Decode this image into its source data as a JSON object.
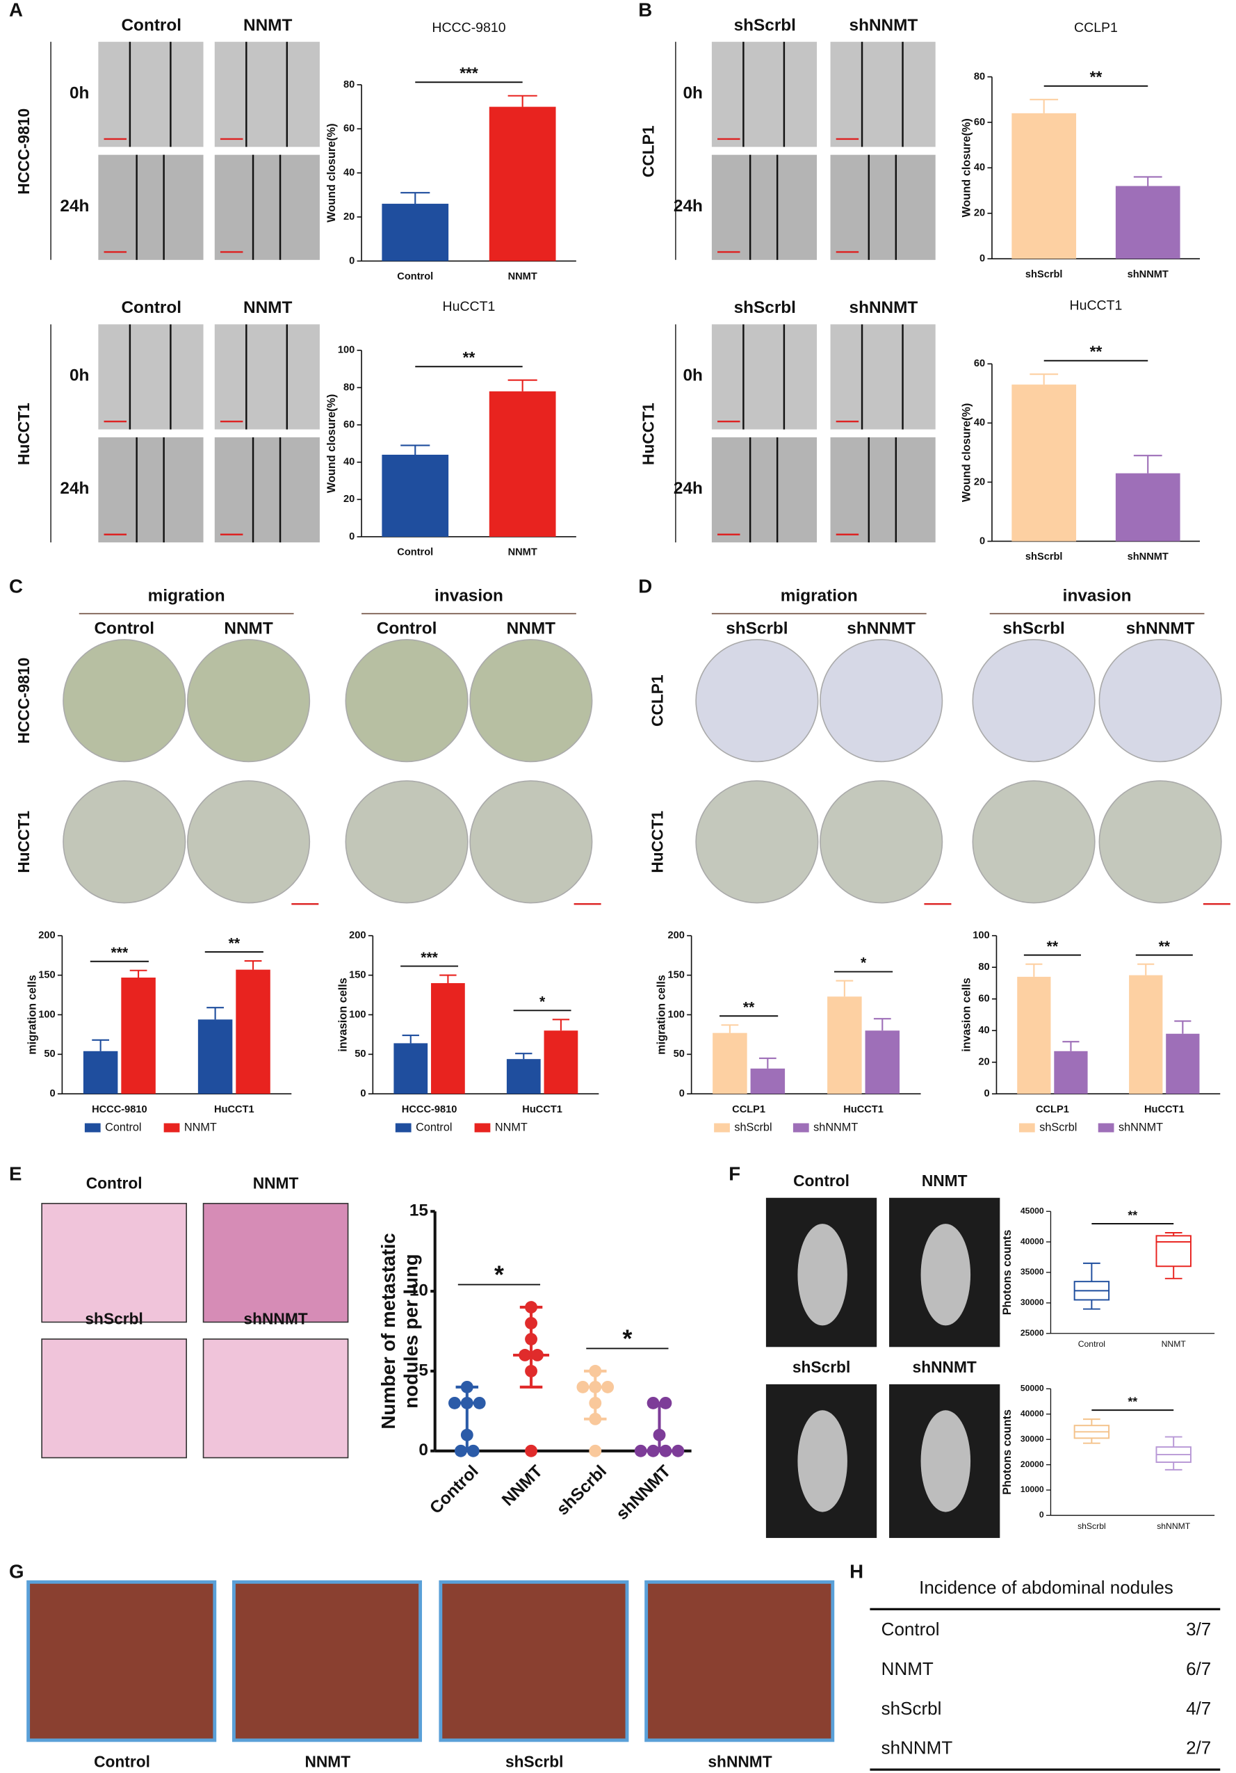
{
  "panels": [
    "A",
    "B",
    "C",
    "D",
    "E",
    "F",
    "G",
    "H"
  ],
  "panel_a": {
    "blocks": [
      {
        "cell": "HCCC-9810",
        "columns": [
          "Control",
          "NNMT"
        ],
        "rows": [
          "0h",
          "24h"
        ]
      },
      {
        "cell": "HuCCT1",
        "columns": [
          "Control",
          "NNMT"
        ],
        "rows": [
          "0h",
          "24h"
        ]
      }
    ]
  },
  "panel_b": {
    "blocks": [
      {
        "cell": "CCLP1",
        "columns": [
          "shScrbl",
          "shNNMT"
        ],
        "rows": [
          "0h",
          "24h"
        ]
      },
      {
        "cell": "HuCCT1",
        "columns": [
          "shScrbl",
          "shNNMT"
        ],
        "rows": [
          "0h",
          "24h"
        ]
      }
    ]
  },
  "panel_c": {
    "groups": [
      {
        "title": "migration",
        "columns": [
          "Control",
          "NNMT"
        ]
      },
      {
        "title": "invasion",
        "columns": [
          "Control",
          "NNMT"
        ]
      }
    ],
    "rows": [
      "HCCC-9810",
      "HuCCT1"
    ]
  },
  "panel_d": {
    "groups": [
      {
        "title": "migration",
        "columns": [
          "shScrbl",
          "shNNMT"
        ]
      },
      {
        "title": "invasion",
        "columns": [
          "shScrbl",
          "shNNMT"
        ]
      }
    ],
    "rows": [
      "CCLP1",
      "HuCCT1"
    ]
  },
  "panel_e": {
    "images": [
      "Control",
      "NNMT",
      "shScrbl",
      "shNNMT"
    ]
  },
  "panel_f": {
    "images": [
      "Control",
      "NNMT",
      "shScrbl",
      "shNNMT"
    ]
  },
  "panel_g": {
    "images": [
      "Control",
      "NNMT",
      "shScrbl",
      "shNNMT"
    ]
  },
  "panel_h": {
    "title": "Incidence of abdominal nodules",
    "rows": [
      [
        "Control",
        "3/7"
      ],
      [
        "NNMT",
        "6/7"
      ],
      [
        "shScrbl",
        "4/7"
      ],
      [
        "shNNMT",
        "2/7"
      ]
    ]
  },
  "chart_data": [
    {
      "type": "bar",
      "title": "HCCC-9810",
      "ylabel": "Wound closure(%)",
      "categories": [
        "Control",
        "NNMT"
      ],
      "values": [
        26,
        70
      ],
      "errors": [
        5,
        5
      ],
      "colors": [
        "#1f4e9e",
        "#e8231f"
      ],
      "ylim": [
        0,
        80
      ],
      "yticks": [
        0,
        20,
        40,
        60,
        80
      ],
      "significance": "***"
    },
    {
      "type": "bar",
      "title": "HuCCT1",
      "ylabel": "Wound closure(%)",
      "categories": [
        "Control",
        "NNMT"
      ],
      "values": [
        44,
        78
      ],
      "errors": [
        5,
        6
      ],
      "colors": [
        "#1f4e9e",
        "#e8231f"
      ],
      "ylim": [
        0,
        100
      ],
      "yticks": [
        0,
        20,
        40,
        60,
        80,
        100
      ],
      "significance": "**"
    },
    {
      "type": "bar",
      "title": "CCLP1",
      "ylabel": "Wound closure(%)",
      "categories": [
        "shScrbl",
        "shNNMT"
      ],
      "values": [
        64,
        32
      ],
      "errors": [
        6,
        4
      ],
      "colors": [
        "#fdd0a2",
        "#9e6fb8"
      ],
      "ylim": [
        0,
        80
      ],
      "yticks": [
        0,
        20,
        40,
        60,
        80
      ],
      "significance": "**"
    },
    {
      "type": "bar",
      "title": "HuCCT1",
      "ylabel": "Wound closure(%)",
      "categories": [
        "shScrbl",
        "shNNMT"
      ],
      "values": [
        53,
        23
      ],
      "errors": [
        3.5,
        6
      ],
      "colors": [
        "#fdd0a2",
        "#9e6fb8"
      ],
      "ylim": [
        0,
        60
      ],
      "yticks": [
        0,
        20,
        40,
        60
      ],
      "significance": "**"
    },
    {
      "type": "bar",
      "ylabel": "migration cells",
      "categories": [
        "HCCC-9810",
        "HuCCT1"
      ],
      "series": [
        {
          "name": "Control",
          "color": "#1f4e9e",
          "values": [
            54,
            94
          ],
          "errors": [
            14,
            15
          ]
        },
        {
          "name": "NNMT",
          "color": "#e8231f",
          "values": [
            147,
            157
          ],
          "errors": [
            9,
            11
          ]
        }
      ],
      "ylim": [
        0,
        200
      ],
      "yticks": [
        0,
        50,
        100,
        150,
        200
      ],
      "significance": [
        "***",
        "**"
      ]
    },
    {
      "type": "bar",
      "ylabel": "invasion cells",
      "categories": [
        "HCCC-9810",
        "HuCCT1"
      ],
      "series": [
        {
          "name": "Control",
          "color": "#1f4e9e",
          "values": [
            64,
            44
          ],
          "errors": [
            10,
            7
          ]
        },
        {
          "name": "NNMT",
          "color": "#e8231f",
          "values": [
            140,
            80
          ],
          "errors": [
            10,
            14
          ]
        }
      ],
      "ylim": [
        0,
        200
      ],
      "yticks": [
        0,
        50,
        100,
        150,
        200
      ],
      "significance": [
        "***",
        "*"
      ]
    },
    {
      "type": "bar",
      "ylabel": "migration cells",
      "categories": [
        "CCLP1",
        "HuCCT1"
      ],
      "series": [
        {
          "name": "shScrbl",
          "color": "#fdd0a2",
          "values": [
            77,
            123
          ],
          "errors": [
            10,
            20
          ]
        },
        {
          "name": "shNNMT",
          "color": "#9e6fb8",
          "values": [
            32,
            80
          ],
          "errors": [
            13,
            15
          ]
        }
      ],
      "ylim": [
        0,
        200
      ],
      "yticks": [
        0,
        50,
        100,
        150,
        200
      ],
      "significance": [
        "**",
        "*"
      ]
    },
    {
      "type": "bar",
      "ylabel": "invasion cells",
      "categories": [
        "CCLP1",
        "HuCCT1"
      ],
      "series": [
        {
          "name": "shScrbl",
          "color": "#fdd0a2",
          "values": [
            74,
            75
          ],
          "errors": [
            8,
            7
          ]
        },
        {
          "name": "shNNMT",
          "color": "#9e6fb8",
          "values": [
            27,
            38
          ],
          "errors": [
            6,
            8
          ]
        }
      ],
      "ylim": [
        0,
        100
      ],
      "yticks": [
        0,
        20,
        40,
        60,
        80,
        100
      ],
      "significance": [
        "**",
        "**"
      ]
    },
    {
      "type": "dot",
      "ylabel": [
        "Number of metastatic",
        "nodules per lung"
      ],
      "categories": [
        "Control",
        "NNMT",
        "shScrbl",
        "shNNMT"
      ],
      "colors": [
        "#2b5ba8",
        "#e02b2b",
        "#f9c89b",
        "#7d3c98"
      ],
      "points": [
        [
          0,
          0,
          1,
          3,
          3,
          3,
          4
        ],
        [
          0,
          5,
          6,
          6,
          7,
          8,
          9
        ],
        [
          0,
          2,
          3,
          4,
          4,
          4,
          5
        ],
        [
          0,
          0,
          0,
          0,
          1,
          3,
          3
        ]
      ],
      "center": [
        3,
        6,
        4,
        0
      ],
      "lower": [
        0,
        4,
        2,
        0
      ],
      "upper": [
        4,
        9,
        5,
        3
      ],
      "ylim": [
        0,
        15
      ],
      "yticks": [
        0,
        5,
        10,
        15
      ],
      "significance": [
        "*",
        "*"
      ]
    },
    {
      "type": "box",
      "ylabel": "Photons counts",
      "categories": [
        "Control",
        "NNMT"
      ],
      "colors": [
        "#1f4e9e",
        "#e8231f"
      ],
      "min": [
        29000,
        34000
      ],
      "q1": [
        30500,
        36000
      ],
      "median": [
        32000,
        40000
      ],
      "q3": [
        33500,
        41000
      ],
      "max": [
        36500,
        41500
      ],
      "ylim": [
        25000,
        45000
      ],
      "yticks": [
        25000,
        30000,
        35000,
        40000,
        45000
      ],
      "significance": "**"
    },
    {
      "type": "box",
      "ylabel": "Photons counts",
      "categories": [
        "shScrbl",
        "shNNMT"
      ],
      "colors": [
        "#f4c28a",
        "#b898d6"
      ],
      "min": [
        28500,
        18000
      ],
      "q1": [
        30500,
        21000
      ],
      "median": [
        33000,
        24000
      ],
      "q3": [
        35500,
        27000
      ],
      "max": [
        38000,
        31000
      ],
      "ylim": [
        0,
        50000
      ],
      "yticks": [
        0,
        10000,
        20000,
        30000,
        40000,
        50000
      ],
      "significance": "**"
    }
  ]
}
